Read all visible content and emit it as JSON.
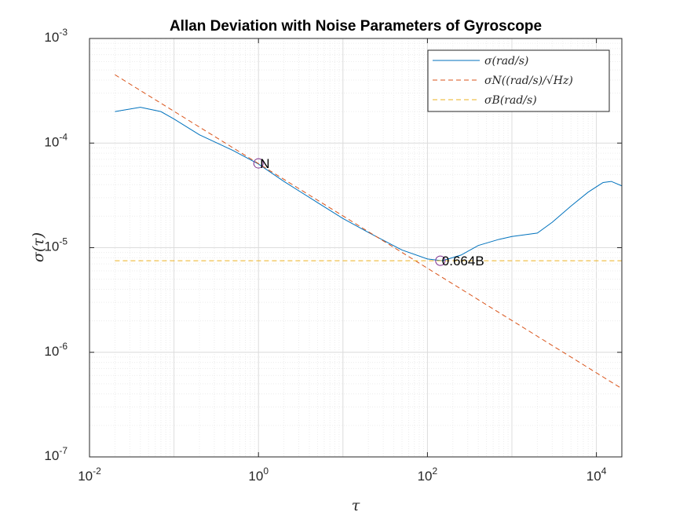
{
  "chart_data": {
    "type": "line",
    "title": "Allan Deviation with Noise Parameters of Gyroscope",
    "xlabel": "τ",
    "ylabel": "σ(τ)",
    "xscale": "log",
    "yscale": "log",
    "xlim": [
      0.01,
      20000
    ],
    "ylim": [
      1e-07,
      0.001
    ],
    "grid": true,
    "legend_location": "top-right",
    "x_ticks": [
      {
        "base": "10",
        "exp": "-2",
        "value": 0.01
      },
      {
        "base": "10",
        "exp": "0",
        "value": 1
      },
      {
        "base": "10",
        "exp": "2",
        "value": 100
      },
      {
        "base": "10",
        "exp": "4",
        "value": 10000
      }
    ],
    "y_ticks": [
      {
        "base": "10",
        "exp": "-3",
        "value": 0.001
      },
      {
        "base": "10",
        "exp": "-4",
        "value": 0.0001
      },
      {
        "base": "10",
        "exp": "-5",
        "value": 1e-05
      },
      {
        "base": "10",
        "exp": "-6",
        "value": 1e-06
      },
      {
        "base": "10",
        "exp": "-7",
        "value": 1e-07
      }
    ],
    "series": [
      {
        "name": "σ(rad/s)",
        "color": "#0072BD",
        "style": "solid",
        "x": [
          0.02,
          0.04,
          0.07,
          0.1,
          0.2,
          0.5,
          1,
          2,
          5,
          10,
          20,
          50,
          100,
          150,
          250,
          400,
          700,
          1000,
          2000,
          3000,
          5000,
          8000,
          12000,
          15000,
          20000
        ],
        "y": [
          0.0002,
          0.00022,
          0.0002,
          0.00017,
          0.00012,
          8.5e-05,
          6.3e-05,
          4.3e-05,
          2.7e-05,
          1.9e-05,
          1.4e-05,
          9.5e-06,
          7.8e-06,
          7.5e-06,
          8.5e-06,
          1.05e-05,
          1.2e-05,
          1.28e-05,
          1.38e-05,
          1.75e-05,
          2.5e-05,
          3.4e-05,
          4.2e-05,
          4.3e-05,
          3.9e-05
        ]
      },
      {
        "name": "σN((rad/s)/√Hz)",
        "color": "#D95319",
        "style": "dashed",
        "x": [
          0.02,
          20000
        ],
        "y": [
          0.00045,
          4.5e-07
        ]
      },
      {
        "name": "σB(rad/s)",
        "color": "#EDB120",
        "style": "dashed",
        "x": [
          0.02,
          20000
        ],
        "y": [
          7.5e-06,
          7.5e-06
        ]
      }
    ],
    "markers": [
      {
        "x": 1,
        "y": 6.4e-05,
        "label": "N"
      },
      {
        "x": 142,
        "y": 7.5e-06,
        "label": "0.664B"
      }
    ],
    "marker_color": "#7E2F8E"
  }
}
